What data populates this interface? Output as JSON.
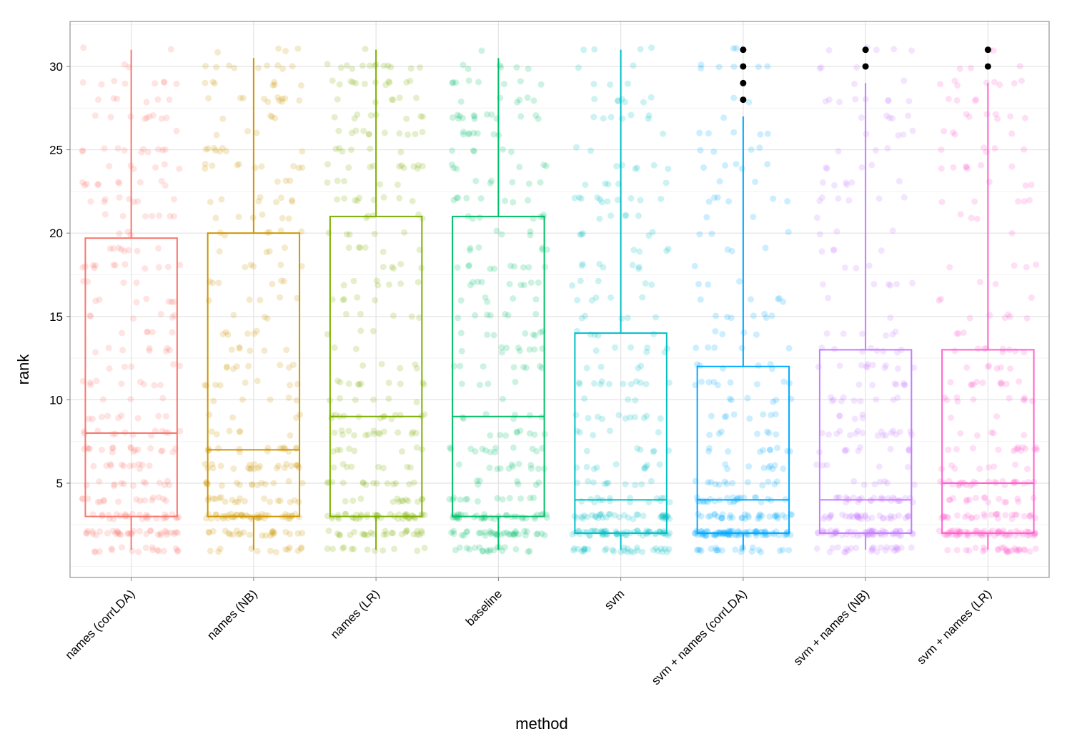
{
  "chart_data": {
    "type": "box",
    "title": "",
    "xlabel": "method",
    "ylabel": "rank",
    "ylim": [
      -0.66,
      32.7
    ],
    "yticks": [
      5,
      10,
      15,
      20,
      25,
      30
    ],
    "grid": true,
    "legend": "none",
    "categories": [
      "names (corrLDA)",
      "names (NB)",
      "names (LR)",
      "baseline",
      "svm",
      "svm + names (corrLDA)",
      "svm + names (NB)",
      "svm + names (LR)"
    ],
    "colors": [
      "#F8766D",
      "#CD9600",
      "#7CAE00",
      "#00BE67",
      "#00BFC4",
      "#00A9FF",
      "#C77CFF",
      "#FF61CC"
    ],
    "boxes": [
      {
        "lower_whisker": 1,
        "q1": 3,
        "median": 8,
        "q3": 19.7,
        "upper_whisker": 31,
        "outliers": []
      },
      {
        "lower_whisker": 1,
        "q1": 3,
        "median": 7,
        "q3": 20,
        "upper_whisker": 30.5,
        "outliers": []
      },
      {
        "lower_whisker": 1,
        "q1": 3,
        "median": 9,
        "q3": 21,
        "upper_whisker": 31,
        "outliers": []
      },
      {
        "lower_whisker": 1,
        "q1": 3,
        "median": 9,
        "q3": 21,
        "upper_whisker": 30.5,
        "outliers": []
      },
      {
        "lower_whisker": 1,
        "q1": 2,
        "median": 4,
        "q3": 14,
        "upper_whisker": 31,
        "outliers": []
      },
      {
        "lower_whisker": 1,
        "q1": 2,
        "median": 4,
        "q3": 12,
        "upper_whisker": 27,
        "outliers": [
          28,
          29,
          30,
          31
        ]
      },
      {
        "lower_whisker": 1,
        "q1": 2,
        "median": 4,
        "q3": 13,
        "upper_whisker": 29,
        "outliers": [
          30,
          31
        ]
      },
      {
        "lower_whisker": 1,
        "q1": 2,
        "median": 5,
        "q3": 13,
        "upper_whisker": 29,
        "outliers": [
          30,
          31
        ]
      }
    ]
  }
}
